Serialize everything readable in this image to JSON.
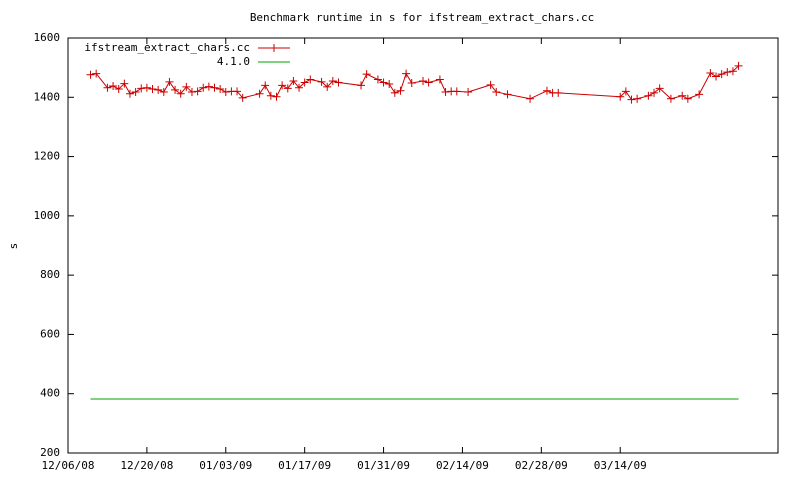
{
  "chart_data": {
    "type": "line",
    "title": "Benchmark runtime in s for ifstream_extract_chars.cc",
    "y_label": "s",
    "xlim": [
      "12/06/08",
      "04/11/09"
    ],
    "xticks": [
      "12/06/08",
      "12/20/08",
      "01/03/09",
      "01/17/09",
      "01/31/09",
      "02/14/09",
      "02/28/09",
      "03/14/09"
    ],
    "ylim": [
      200,
      1600
    ],
    "yticks": [
      200,
      400,
      600,
      800,
      1000,
      1200,
      1400,
      1600
    ],
    "legend": "top-left",
    "series": [
      {
        "name": "ifstream_extract_chars.cc",
        "color": "#cc0000",
        "marker": "+",
        "x": [
          "12/10/08",
          "12/11/08",
          "12/13/08",
          "12/14/08",
          "12/15/08",
          "12/16/08",
          "12/17/08",
          "12/18/08",
          "12/19/08",
          "12/20/08",
          "12/21/08",
          "12/22/08",
          "12/23/08",
          "12/24/08",
          "12/25/08",
          "12/26/08",
          "12/27/08",
          "12/28/08",
          "12/29/08",
          "12/30/08",
          "12/31/08",
          "01/01/09",
          "01/02/09",
          "01/03/09",
          "01/04/09",
          "01/05/09",
          "01/06/09",
          "01/09/09",
          "01/10/09",
          "01/11/09",
          "01/12/09",
          "01/13/09",
          "01/14/09",
          "01/15/09",
          "01/16/09",
          "01/17/09",
          "01/18/09",
          "01/20/09",
          "01/21/09",
          "01/22/09",
          "01/23/09",
          "01/27/09",
          "01/28/09",
          "01/30/09",
          "01/31/09",
          "02/01/09",
          "02/02/09",
          "02/03/09",
          "02/04/09",
          "02/05/09",
          "02/07/09",
          "02/08/09",
          "02/10/09",
          "02/11/09",
          "02/12/09",
          "02/13/09",
          "02/15/09",
          "02/19/09",
          "02/20/09",
          "02/22/09",
          "02/26/09",
          "03/01/09",
          "03/02/09",
          "03/03/09",
          "03/14/09",
          "03/15/09",
          "03/16/09",
          "03/17/09",
          "03/19/09",
          "03/20/09",
          "03/21/09",
          "03/23/09",
          "03/25/09",
          "03/26/09",
          "03/28/09",
          "03/30/09",
          "03/31/09",
          "04/01/09",
          "04/02/09",
          "04/03/09",
          "04/04/09"
        ],
        "values": [
          1476,
          1480,
          1432,
          1438,
          1428,
          1446,
          1412,
          1418,
          1430,
          1432,
          1428,
          1425,
          1418,
          1452,
          1425,
          1412,
          1435,
          1418,
          1420,
          1432,
          1436,
          1432,
          1428,
          1418,
          1420,
          1420,
          1398,
          1412,
          1440,
          1405,
          1402,
          1440,
          1430,
          1455,
          1432,
          1450,
          1460,
          1452,
          1435,
          1455,
          1450,
          1440,
          1478,
          1460,
          1450,
          1445,
          1415,
          1422,
          1480,
          1448,
          1455,
          1450,
          1460,
          1418,
          1420,
          1420,
          1418,
          1442,
          1418,
          1410,
          1395,
          1422,
          1415,
          1415,
          1402,
          1420,
          1392,
          1395,
          1405,
          1415,
          1430,
          1395,
          1405,
          1395,
          1410,
          1482,
          1470,
          1478,
          1485,
          1488,
          1506
        ]
      },
      {
        "name": "4.1.0",
        "color": "#00a000",
        "x": [
          "12/10/08",
          "04/04/09"
        ],
        "values": [
          382,
          382
        ]
      }
    ]
  }
}
